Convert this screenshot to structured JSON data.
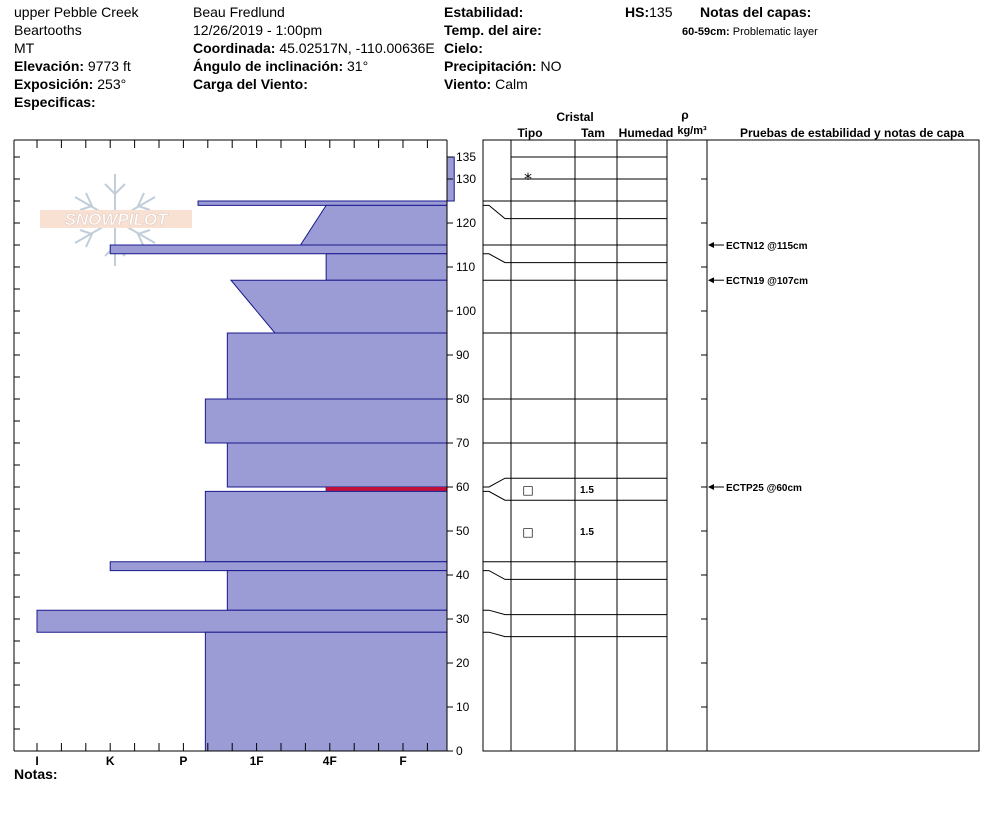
{
  "site": {
    "location": "upper Pebble Creek",
    "range": "Beartooths",
    "state": "MT",
    "elevation_label": "Elevación:",
    "elevation": "9773 ft",
    "aspect_label": "Exposición:",
    "aspect": "253°",
    "specifics_label": "Especificas:"
  },
  "observer": {
    "name": "Beau  Fredlund",
    "datetime": "12/26/2019 - 1:00pm",
    "coord_label": "Coordinada:",
    "coord": "45.02517N, -110.00636E",
    "slope_label": "Ángulo de inclinación:",
    "slope": "31°",
    "wind_load_label": "Carga del Viento:"
  },
  "conditions": {
    "stability_label": "Estabilidad:",
    "air_temp_label": "Temp. del aire:",
    "sky_label": "Cielo:",
    "precip_label": "Precipitación:",
    "precip": "NO",
    "wind_label": "Viento:",
    "wind": "Calm"
  },
  "hs": {
    "label": "HS:",
    "value": "135"
  },
  "layer_notes": {
    "label": "Notas del capas:",
    "item_range": "60-59cm:",
    "item_text": "Problematic layer"
  },
  "notes_label": "Notas:",
  "logo_text": "SNOWPILOT",
  "columns": {
    "crystal": "Cristal",
    "type": "Tipo",
    "size": "Tam",
    "moisture": "Humedad",
    "rho": "ρ",
    "density_unit": "kg/m³",
    "tests": "Pruebas de estabilidad y notas de capa"
  },
  "colors": {
    "layer_fill": "#9b9bd6",
    "layer_stroke": "#1a1a8c",
    "weak_layer": "#c0103a"
  },
  "chart_data": {
    "type": "bar",
    "orientation": "horizontal",
    "ylabel": "",
    "ylim": [
      0,
      135
    ],
    "yticks": [
      0,
      10,
      20,
      30,
      40,
      50,
      60,
      70,
      80,
      90,
      100,
      110,
      120,
      130,
      135
    ],
    "hardness_scale": [
      "I",
      "K",
      "P",
      "1F",
      "4F",
      "F"
    ],
    "hardness_scale_values": [
      0,
      1,
      2,
      3,
      4,
      5
    ],
    "xlim_note": "hardness index measured from chart's right edge (F=0.75 from right)",
    "layers": [
      {
        "top": 135,
        "bottom": 125,
        "hard_top": 5.7,
        "hard_bottom": 5.7
      },
      {
        "top": 125,
        "bottom": 124,
        "hard_top": 2.2,
        "hard_bottom": 2.2
      },
      {
        "top": 124,
        "bottom": 115,
        "hard_top": 3.95,
        "hard_bottom": 3.6
      },
      {
        "top": 115,
        "bottom": 113,
        "hard_top": 1.0,
        "hard_bottom": 1.0
      },
      {
        "top": 113,
        "bottom": 107,
        "hard_top": 3.95,
        "hard_bottom": 3.95
      },
      {
        "top": 107,
        "bottom": 95,
        "hard_top": 2.65,
        "hard_bottom": 3.25
      },
      {
        "top": 95,
        "bottom": 80,
        "hard_top": 2.6,
        "hard_bottom": 2.6
      },
      {
        "top": 80,
        "bottom": 70,
        "hard_top": 2.3,
        "hard_bottom": 2.3
      },
      {
        "top": 70,
        "bottom": 60,
        "hard_top": 2.6,
        "hard_bottom": 2.6
      },
      {
        "top": 60,
        "bottom": 59,
        "hard_top": 3.95,
        "hard_bottom": 3.95,
        "weak": true
      },
      {
        "top": 59,
        "bottom": 43,
        "hard_top": 2.3,
        "hard_bottom": 2.3
      },
      {
        "top": 43,
        "bottom": 41,
        "hard_top": 1.0,
        "hard_bottom": 1.0
      },
      {
        "top": 41,
        "bottom": 32,
        "hard_top": 2.6,
        "hard_bottom": 2.6
      },
      {
        "top": 32,
        "bottom": 27,
        "hard_top": 0.0,
        "hard_bottom": 0.0
      },
      {
        "top": 27,
        "bottom": 0,
        "hard_top": 2.3,
        "hard_bottom": 2.3
      }
    ],
    "boundaries_left": [
      135,
      125,
      124,
      115,
      113,
      107,
      95,
      80,
      70,
      60,
      59,
      43,
      41,
      32,
      27
    ],
    "boundaries_right": [
      135,
      130,
      125,
      121,
      115,
      111,
      107,
      95,
      80,
      70,
      62,
      57,
      43,
      39,
      31,
      26
    ],
    "crystals": [
      {
        "depth": 130,
        "symbol": "*",
        "size": ""
      },
      {
        "depth": 59.5,
        "symbol": "□",
        "size": "1.5"
      },
      {
        "depth": 50,
        "symbol": "□",
        "size": "1.5"
      }
    ],
    "tests": [
      {
        "depth": 115,
        "text": "ECTN12 @115cm"
      },
      {
        "depth": 107,
        "text": "ECTN19 @107cm"
      },
      {
        "depth": 60,
        "text": "ECTP25 @60cm"
      }
    ]
  }
}
